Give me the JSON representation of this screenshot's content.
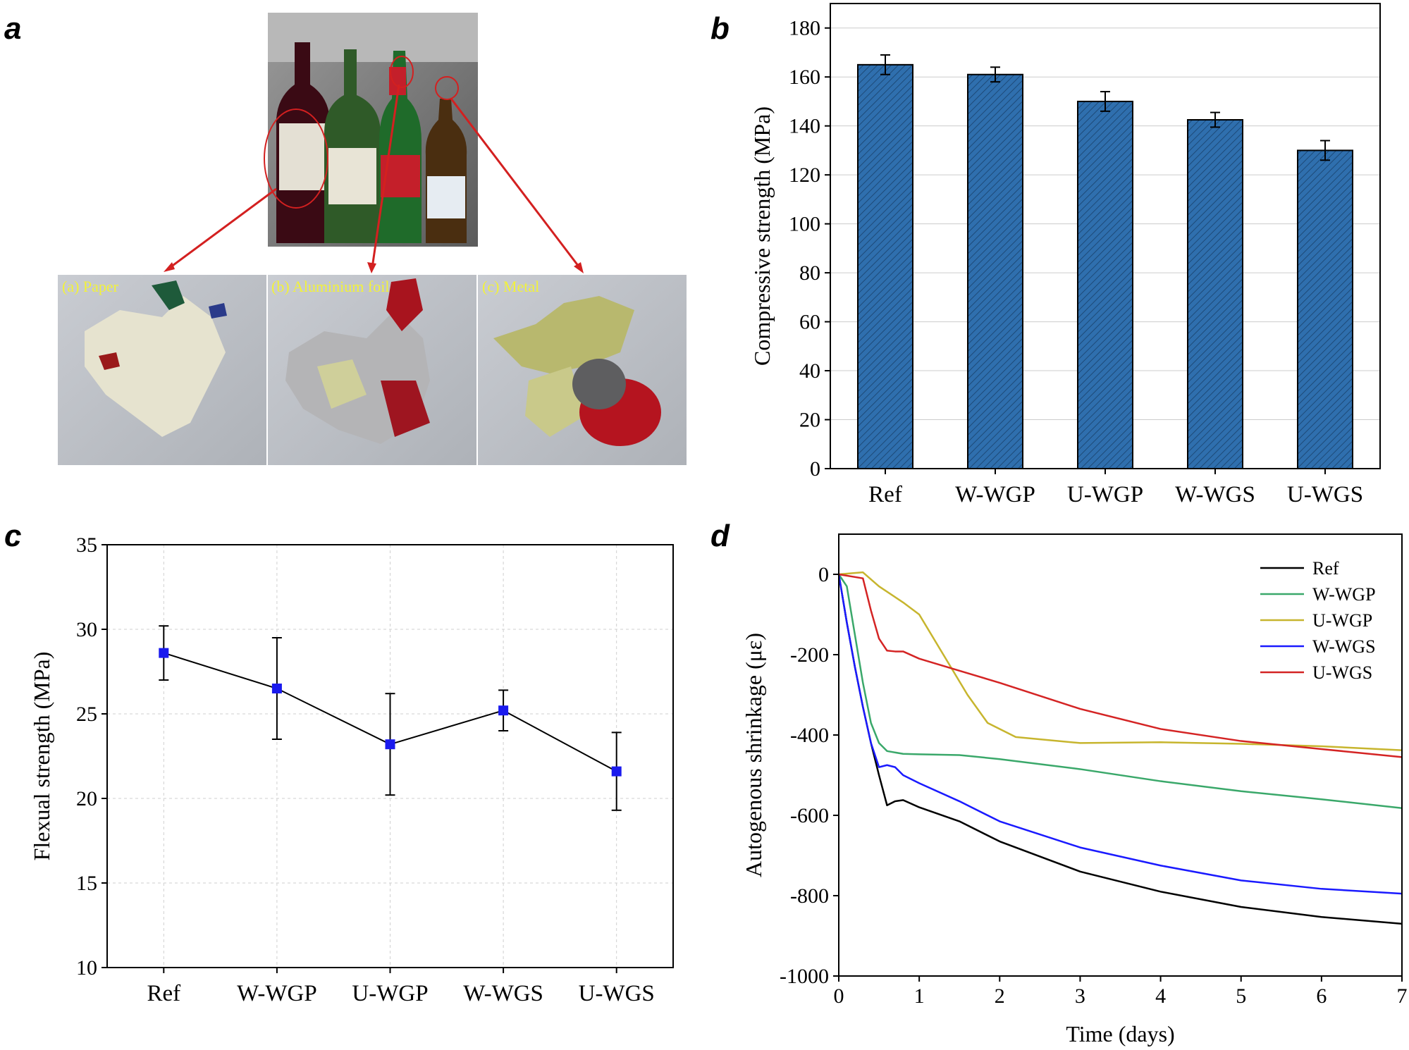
{
  "panels": {
    "a": {
      "label": "a",
      "photo_labels": [
        "(a) Paper",
        "(b) Aluminium foil",
        "(c) Metal"
      ]
    },
    "b": {
      "label": "b"
    },
    "c": {
      "label": "c"
    },
    "d": {
      "label": "d"
    }
  },
  "colors": {
    "bar_fill": "#2f6fae",
    "ref": "#000000",
    "w_wgp": "#3aa86a",
    "u_wgp": "#c7b52e",
    "w_wgs": "#1a1aff",
    "u_wgs": "#d42424",
    "marker": "#1a1aee"
  },
  "chart_data": [
    {
      "panel": "b",
      "type": "bar",
      "categories": [
        "Ref",
        "W-WGP",
        "U-WGP",
        "W-WGS",
        "U-WGS"
      ],
      "values": [
        165,
        161,
        150,
        142.5,
        130
      ],
      "errors": [
        4,
        3,
        4,
        3,
        4
      ],
      "ylabel": "Compressive strength (MPa)",
      "ylim": [
        0,
        190
      ],
      "yticks": [
        0,
        20,
        40,
        60,
        80,
        100,
        120,
        140,
        160,
        180
      ],
      "grid": true
    },
    {
      "panel": "c",
      "type": "line",
      "categories": [
        "Ref",
        "W-WGP",
        "U-WGP",
        "W-WGS",
        "U-WGS"
      ],
      "values": [
        28.6,
        26.5,
        23.2,
        25.2,
        21.6
      ],
      "errors": [
        1.6,
        3.0,
        3.0,
        1.2,
        2.3
      ],
      "ylabel": "Flexual strength (MPa)",
      "ylim": [
        10,
        35
      ],
      "yticks": [
        10,
        15,
        20,
        25,
        30,
        35
      ],
      "grid": true
    },
    {
      "panel": "d",
      "type": "line",
      "xlabel": "Time (days)",
      "ylabel": "Autogenous shrinkage (με)",
      "xlim": [
        0,
        7
      ],
      "ylim": [
        -1000,
        100
      ],
      "xticks": [
        0,
        1,
        2,
        3,
        4,
        5,
        6,
        7
      ],
      "yticks": [
        0,
        -200,
        -400,
        -600,
        -800,
        -1000
      ],
      "legend_position": "top-right",
      "series": [
        {
          "name": "Ref",
          "x": [
            0,
            0.1,
            0.2,
            0.3,
            0.4,
            0.5,
            0.6,
            0.7,
            0.8,
            1.0,
            1.5,
            2.0,
            3.0,
            4.0,
            5.0,
            6.0,
            7.0
          ],
          "y": [
            0,
            -120,
            -230,
            -330,
            -420,
            -500,
            -575,
            -565,
            -562,
            -580,
            -615,
            -665,
            -740,
            -790,
            -828,
            -853,
            -870
          ]
        },
        {
          "name": "W-WGP",
          "x": [
            0,
            0.1,
            0.2,
            0.3,
            0.4,
            0.5,
            0.6,
            0.8,
            1.0,
            1.5,
            2.0,
            3.0,
            4.0,
            5.0,
            6.0,
            7.0
          ],
          "y": [
            0,
            -30,
            -150,
            -270,
            -370,
            -420,
            -440,
            -447,
            -448,
            -450,
            -460,
            -485,
            -515,
            -540,
            -560,
            -582
          ]
        },
        {
          "name": "U-WGP",
          "x": [
            0,
            0.3,
            0.5,
            0.8,
            1.0,
            1.3,
            1.6,
            1.85,
            2.2,
            3.0,
            4.0,
            5.0,
            6.0,
            7.0
          ],
          "y": [
            0,
            5,
            -30,
            -70,
            -100,
            -200,
            -300,
            -370,
            -405,
            -420,
            -418,
            -422,
            -428,
            -438
          ]
        },
        {
          "name": "W-WGS",
          "x": [
            0,
            0.1,
            0.2,
            0.3,
            0.4,
            0.5,
            0.6,
            0.7,
            0.8,
            1.0,
            1.5,
            2.0,
            3.0,
            4.0,
            5.0,
            6.0,
            7.0
          ],
          "y": [
            0,
            -120,
            -230,
            -330,
            -420,
            -480,
            -475,
            -480,
            -500,
            -520,
            -565,
            -615,
            -680,
            -725,
            -762,
            -783,
            -795
          ]
        },
        {
          "name": "U-WGS",
          "x": [
            0,
            0.3,
            0.4,
            0.5,
            0.6,
            0.7,
            0.8,
            1.0,
            1.5,
            2.0,
            3.0,
            4.0,
            5.0,
            6.0,
            7.0
          ],
          "y": [
            0,
            -10,
            -90,
            -160,
            -190,
            -192,
            -192,
            -210,
            -240,
            -270,
            -335,
            -385,
            -415,
            -435,
            -455
          ]
        }
      ]
    }
  ]
}
